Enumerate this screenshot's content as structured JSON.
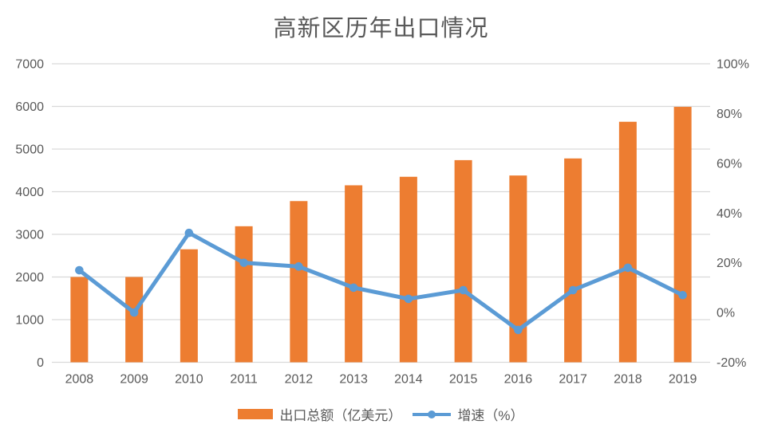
{
  "title": "高新区历年出口情况",
  "colors": {
    "bar": "#ED7D31",
    "line": "#5B9BD5",
    "text": "#595959",
    "grid": "#D9D9D9"
  },
  "chart_data": {
    "type": "combo",
    "title": "高新区历年出口情况",
    "categories": [
      "2008",
      "2009",
      "2010",
      "2011",
      "2012",
      "2013",
      "2014",
      "2015",
      "2016",
      "2017",
      "2018",
      "2019"
    ],
    "series": [
      {
        "name": "出口总额（亿美元）",
        "type": "bar",
        "axis": "left",
        "color": "#ED7D31",
        "values": [
          2000,
          2000,
          2650,
          3190,
          3780,
          4150,
          4350,
          4740,
          4380,
          4780,
          5640,
          5990
        ]
      },
      {
        "name": "增速（%）",
        "type": "line",
        "axis": "right",
        "color": "#5B9BD5",
        "values": [
          17,
          0,
          32,
          20,
          18.5,
          10,
          5.5,
          9,
          -7,
          9,
          18,
          7
        ]
      }
    ],
    "left_axis": {
      "min": 0,
      "max": 7000,
      "step": 1000,
      "tick_labels": [
        "0",
        "1000",
        "2000",
        "3000",
        "4000",
        "5000",
        "6000",
        "7000"
      ]
    },
    "right_axis": {
      "min": -20,
      "max": 100,
      "step": 20,
      "tick_labels": [
        "-20%",
        "0%",
        "20%",
        "40%",
        "60%",
        "80%",
        "100%"
      ]
    },
    "grid": true,
    "legend_position": "bottom"
  }
}
